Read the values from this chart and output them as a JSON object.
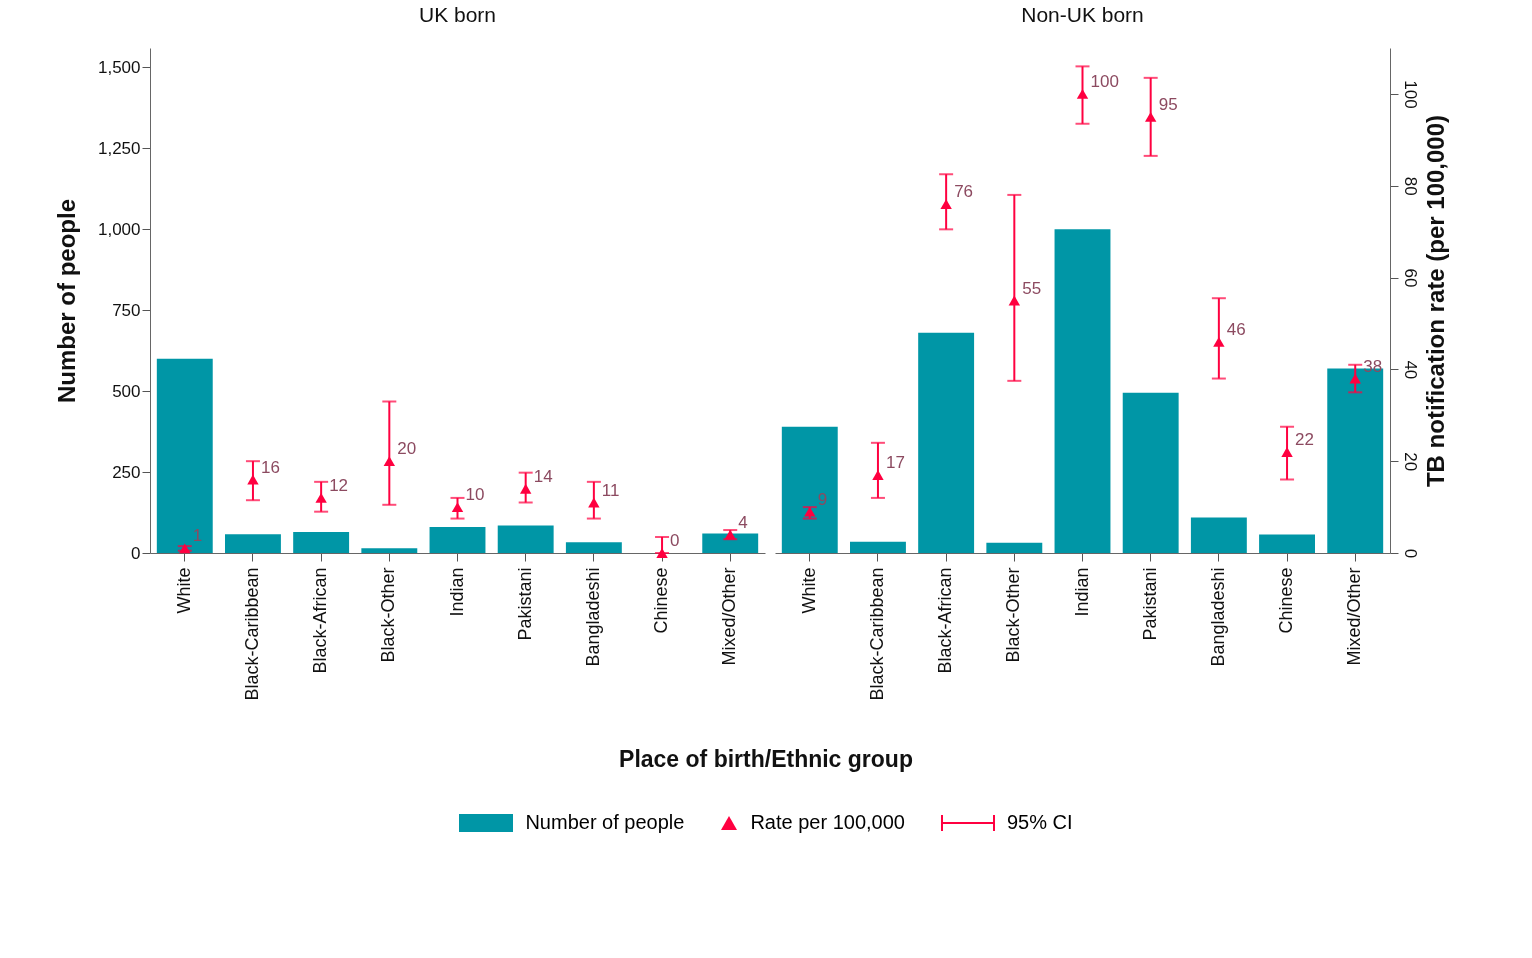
{
  "chart_data": [
    {
      "type": "bar",
      "title": "UK born",
      "xlabel": "Place of birth/Ethnic group",
      "ylabel": "Number of people",
      "categories": [
        "White",
        "Black-Caribbean",
        "Black-African",
        "Black-Other",
        "Indian",
        "Pakistani",
        "Bangladeshi",
        "Chinese",
        "Mixed/Other"
      ],
      "series": [
        {
          "name": "Number of people",
          "color": "#0096a6",
          "values": [
            600,
            58,
            65,
            15,
            80,
            85,
            33,
            null,
            60
          ]
        },
        {
          "name": "Rate per 100,000",
          "type": "scatter",
          "axis": "y2",
          "color": "#ff0040",
          "marker": "triangle",
          "values": [
            1,
            16,
            12,
            20,
            10,
            14,
            11,
            0,
            4
          ],
          "value_labels": [
            "1",
            "16",
            "12",
            "20",
            "10",
            "14",
            "11",
            "0",
            "4"
          ],
          "errors": [
            [
              0.5,
              1.5
            ],
            [
              11.5,
              20
            ],
            [
              9,
              15.5
            ],
            [
              10.5,
              33
            ],
            [
              7.5,
              12
            ],
            [
              11,
              17.5
            ],
            [
              7.5,
              15.5
            ],
            [
              0,
              3.5
            ],
            [
              3,
              5
            ]
          ]
        }
      ],
      "ylim": [
        0,
        1560
      ],
      "yticks": [
        0,
        250,
        500,
        750,
        {
          "value": 1000,
          "label": "1,000"
        },
        {
          "value": 1250,
          "label": "1,250"
        },
        {
          "value": 1500,
          "label": "1,500"
        }
      ],
      "y2lim": [
        0,
        110
      ],
      "legend": "bottom",
      "annotations": [
        "95% CI"
      ]
    },
    {
      "type": "bar",
      "title": "Non-UK born",
      "y2label": "TB notification rate (per 100,000)",
      "categories": [
        "White",
        "Black-Caribbean",
        "Black-African",
        "Black-Other",
        "Indian",
        "Pakistani",
        "Bangladeshi",
        "Chinese",
        "Mixed/Other"
      ],
      "series": [
        {
          "color": "#0096a6",
          "values": [
            390,
            35,
            680,
            32,
            1000,
            495,
            110,
            57,
            570
          ]
        },
        {
          "type": "scatter",
          "axis": "y2",
          "color": "#ff0040",
          "marker": "triangle",
          "values": [
            9,
            17,
            76,
            55,
            100,
            95,
            46,
            22,
            38
          ],
          "value_labels": [
            "9",
            "17",
            "76",
            "55",
            "100",
            "95",
            "46",
            "22",
            "38"
          ],
          "errors": [
            [
              7.5,
              10
            ],
            [
              12,
              24
            ],
            [
              70.5,
              82.5
            ],
            [
              37.5,
              78
            ],
            [
              93.5,
              106
            ],
            [
              86.5,
              103.5
            ],
            [
              38,
              55.5
            ],
            [
              16,
              27.5
            ],
            [
              35,
              41
            ]
          ]
        }
      ],
      "ylim": [
        0,
        1560
      ],
      "y2lim": [
        0,
        110
      ],
      "y2ticks": [
        0,
        20,
        40,
        60,
        80,
        100
      ]
    }
  ]
}
